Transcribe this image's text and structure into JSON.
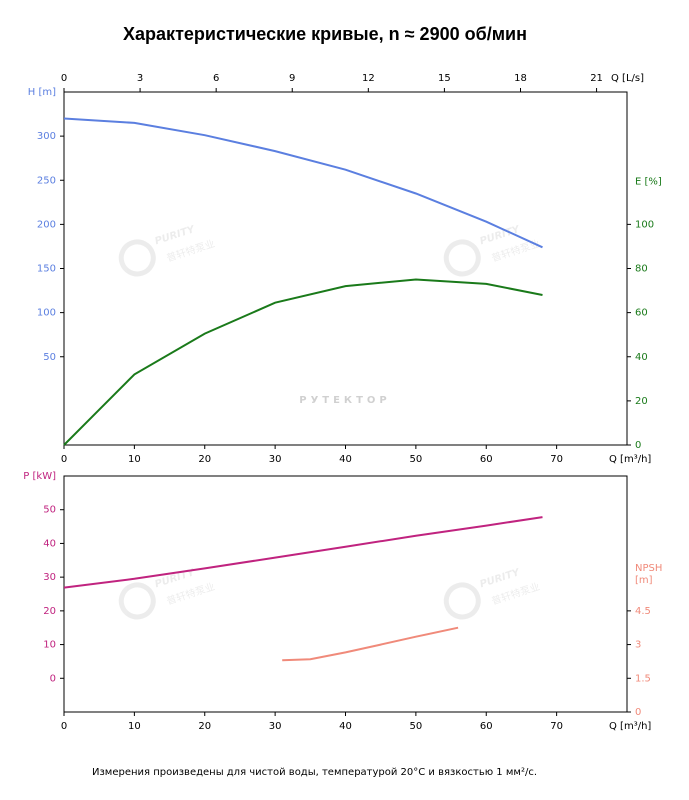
{
  "chart_data": [
    {
      "type": "line",
      "title": "Характеристические кривые, n ≈ 2900 об/мин",
      "xlabel": "Q [m³/h]",
      "x2label": "Q [L/s]",
      "ylabel": "H [m]",
      "y2label": [
        "E [%]"
      ],
      "xlim": [
        0,
        80
      ],
      "xticks": [
        0,
        10,
        20,
        30,
        40,
        50,
        60,
        70
      ],
      "x2lim": [
        0,
        22.2
      ],
      "x2ticks": [
        0,
        3,
        6,
        9,
        12,
        15,
        18,
        21
      ],
      "ylim": [
        -50,
        350
      ],
      "yticks": [
        50,
        100,
        150,
        200,
        250,
        300
      ],
      "y2lim": [
        0,
        160
      ],
      "y2ticks": [
        0,
        20,
        40,
        60,
        80,
        100
      ],
      "ycolor": "#5b7fe0",
      "y2color": "#1a7a1a",
      "series": [
        {
          "name": "H",
          "color": "#5b7fe0",
          "x": [
            0,
            10,
            20,
            30,
            40,
            50,
            60,
            68
          ],
          "values": [
            320,
            315,
            301,
            283,
            262,
            235,
            203,
            174
          ]
        },
        {
          "name": "E",
          "color": "#1a7a1a",
          "axis": "y2",
          "x": [
            0,
            5,
            10,
            20,
            30,
            40,
            50,
            60,
            68
          ],
          "values": [
            0,
            16,
            32,
            50.5,
            64.5,
            72,
            75,
            73,
            68
          ]
        }
      ]
    },
    {
      "type": "line",
      "xlabel": "Q [m³/h]",
      "ylabel": "P [kW]",
      "y2label": [
        "NPSH",
        "[m]"
      ],
      "xlim": [
        0,
        80
      ],
      "xticks": [
        0,
        10,
        20,
        30,
        40,
        50,
        60,
        70
      ],
      "ylim": [
        -10,
        60
      ],
      "yticks": [
        0,
        10,
        20,
        30,
        40,
        50
      ],
      "y2lim": [
        0,
        10.5
      ],
      "y2ticks": [
        0,
        1.5,
        3,
        4.5
      ],
      "ycolor": "#c0237f",
      "y2color": "#f08a7a",
      "series": [
        {
          "name": "P",
          "color": "#c0237f",
          "x": [
            0,
            10,
            20,
            30,
            40,
            50,
            60,
            68
          ],
          "values": [
            26.9,
            29.5,
            32.6,
            35.8,
            39,
            42.3,
            45.3,
            47.8
          ]
        },
        {
          "name": "NPSH",
          "color": "#f08a7a",
          "axis": "y2",
          "x": [
            31,
            35,
            40,
            45,
            50,
            56
          ],
          "values": [
            2.3,
            2.35,
            2.65,
            3,
            3.35,
            3.75
          ]
        }
      ]
    }
  ],
  "watermarks": {
    "main": "РУТЕКТОР",
    "logo": "PURITY",
    "logo_sub": "普轩特泵业"
  },
  "footnote": "Измерения произведены для чистой воды, температурой 20°C и вязкостью 1 мм²/с."
}
